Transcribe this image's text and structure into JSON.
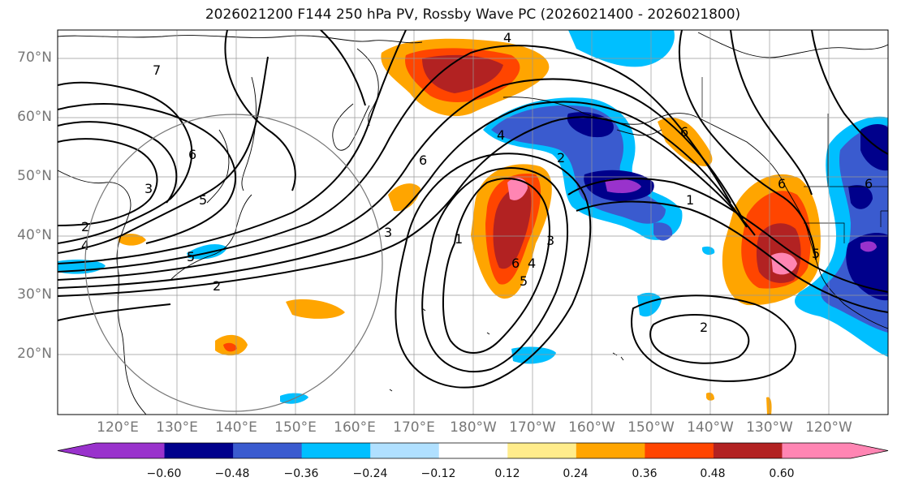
{
  "title": "2026021200 F144 250 hPa PV, Rossby Wave PC (2026021400 - 2026021800)",
  "lat_labels": [
    "70°N",
    "60°N",
    "50°N",
    "40°N",
    "30°N",
    "20°N"
  ],
  "lon_labels": [
    "120°E",
    "130°E",
    "140°E",
    "150°E",
    "160°E",
    "170°E",
    "180°W",
    "170°W",
    "160°W",
    "150°W",
    "140°W",
    "130°W",
    "120°W"
  ],
  "colorbar": {
    "colors": [
      "#9932cc",
      "#00008b",
      "#3a5bcf",
      "#00bfff",
      "#b0e0ff",
      "#ffffff",
      "#ffec8b",
      "#ffa500",
      "#ff4500",
      "#b22222",
      "#ff85b3"
    ],
    "ticks": [
      "−0.60",
      "−0.48",
      "−0.36",
      "−0.24",
      "−0.12",
      "0.12",
      "0.24",
      "0.36",
      "0.48",
      "0.60"
    ]
  },
  "contour_labels": [
    "7",
    "6",
    "5",
    "4",
    "3",
    "2",
    "1"
  ]
}
